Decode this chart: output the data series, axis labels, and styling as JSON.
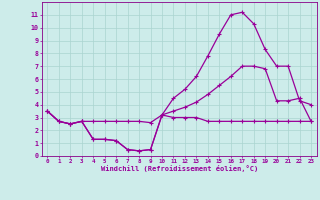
{
  "xlabel": "Windchill (Refroidissement éolien,°C)",
  "bg_color": "#cdecea",
  "grid_color": "#aad4d0",
  "line_color": "#990099",
  "spine_color": "#880088",
  "xlim": [
    -0.5,
    23.5
  ],
  "ylim": [
    0,
    12
  ],
  "xticks": [
    0,
    1,
    2,
    3,
    4,
    5,
    6,
    7,
    8,
    9,
    10,
    11,
    12,
    13,
    14,
    15,
    16,
    17,
    18,
    19,
    20,
    21,
    22,
    23
  ],
  "yticks": [
    0,
    1,
    2,
    3,
    4,
    5,
    6,
    7,
    8,
    9,
    10,
    11
  ],
  "series": [
    [
      3.5,
      2.7,
      2.5,
      2.7,
      1.3,
      1.3,
      1.2,
      0.5,
      0.4,
      0.5,
      3.2,
      3.0,
      3.0,
      3.0,
      2.7,
      2.7,
      2.7,
      2.7,
      2.7,
      2.7,
      2.7,
      2.7,
      2.7,
      2.7
    ],
    [
      3.5,
      2.7,
      2.5,
      2.7,
      1.3,
      1.3,
      1.2,
      0.5,
      0.4,
      0.5,
      3.2,
      4.5,
      5.2,
      6.2,
      7.8,
      9.5,
      11.0,
      11.2,
      10.3,
      8.3,
      7.0,
      7.0,
      4.3,
      4.0
    ],
    [
      3.5,
      2.7,
      2.5,
      2.7,
      2.7,
      2.7,
      2.7,
      2.7,
      2.7,
      2.6,
      3.2,
      3.5,
      3.8,
      4.2,
      4.8,
      5.5,
      6.2,
      7.0,
      7.0,
      6.8,
      4.3,
      4.3,
      4.5,
      2.7
    ]
  ],
  "marker": "+",
  "markersize": 3.5,
  "linewidth": 0.9
}
